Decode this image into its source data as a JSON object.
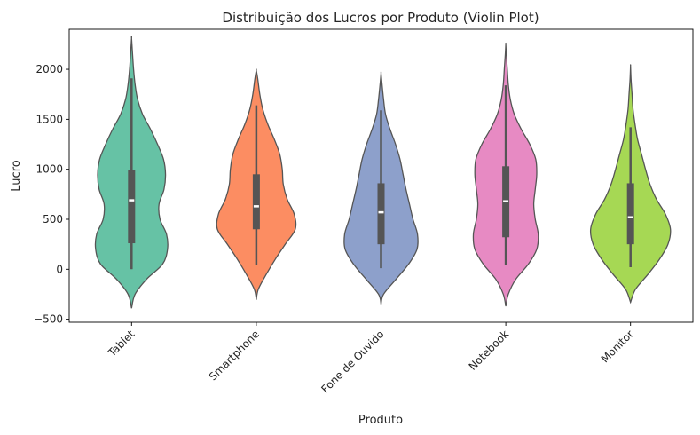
{
  "chart_data": {
    "type": "violin",
    "title": "Distribuição dos Lucros por Produto (Violin Plot)",
    "xlabel": "Produto",
    "ylabel": "Lucro",
    "ylim": [
      -530,
      2400
    ],
    "yticks": [
      -500,
      0,
      500,
      1000,
      1500,
      2000
    ],
    "categories": [
      "Tablet",
      "Smartphone",
      "Fone de Ouvido",
      "Notebook",
      "Monitor"
    ],
    "colors": [
      "#66c2a5",
      "#fc8d62",
      "#8da0cb",
      "#e78ac3",
      "#a6d854"
    ],
    "series": [
      {
        "name": "Tablet",
        "min": 0,
        "q1": 260,
        "median": 690,
        "q3": 990,
        "max": 1910,
        "violin_min": -390,
        "violin_max": 2310,
        "density": [
          [
            -390,
            0.0
          ],
          [
            -250,
            0.07
          ],
          [
            -100,
            0.3
          ],
          [
            50,
            0.62
          ],
          [
            200,
            0.72
          ],
          [
            350,
            0.7
          ],
          [
            500,
            0.57
          ],
          [
            650,
            0.55
          ],
          [
            800,
            0.65
          ],
          [
            950,
            0.68
          ],
          [
            1100,
            0.64
          ],
          [
            1250,
            0.52
          ],
          [
            1400,
            0.38
          ],
          [
            1550,
            0.22
          ],
          [
            1700,
            0.12
          ],
          [
            1850,
            0.07
          ],
          [
            2000,
            0.04
          ],
          [
            2150,
            0.02
          ],
          [
            2310,
            0.0
          ]
        ]
      },
      {
        "name": "Smartphone",
        "min": 40,
        "q1": 400,
        "median": 630,
        "q3": 950,
        "max": 1640,
        "violin_min": -305,
        "violin_max": 1990,
        "density": [
          [
            -305,
            0.0
          ],
          [
            -200,
            0.04
          ],
          [
            -50,
            0.2
          ],
          [
            100,
            0.38
          ],
          [
            250,
            0.58
          ],
          [
            400,
            0.78
          ],
          [
            550,
            0.76
          ],
          [
            700,
            0.62
          ],
          [
            850,
            0.54
          ],
          [
            1000,
            0.52
          ],
          [
            1150,
            0.47
          ],
          [
            1300,
            0.36
          ],
          [
            1450,
            0.23
          ],
          [
            1600,
            0.13
          ],
          [
            1750,
            0.07
          ],
          [
            1900,
            0.03
          ],
          [
            1990,
            0.0
          ]
        ]
      },
      {
        "name": "Fone de Ouvido",
        "min": 10,
        "q1": 250,
        "median": 570,
        "q3": 860,
        "max": 1590,
        "violin_min": -350,
        "violin_max": 1960,
        "density": [
          [
            -350,
            0.0
          ],
          [
            -250,
            0.05
          ],
          [
            -100,
            0.3
          ],
          [
            50,
            0.55
          ],
          [
            200,
            0.72
          ],
          [
            350,
            0.73
          ],
          [
            500,
            0.64
          ],
          [
            650,
            0.57
          ],
          [
            800,
            0.5
          ],
          [
            950,
            0.44
          ],
          [
            1100,
            0.38
          ],
          [
            1250,
            0.29
          ],
          [
            1400,
            0.18
          ],
          [
            1550,
            0.09
          ],
          [
            1700,
            0.05
          ],
          [
            1850,
            0.02
          ],
          [
            1960,
            0.0
          ]
        ]
      },
      {
        "name": "Notebook",
        "min": 40,
        "q1": 320,
        "median": 680,
        "q3": 1030,
        "max": 1840,
        "violin_min": -370,
        "violin_max": 2250,
        "density": [
          [
            -370,
            0.0
          ],
          [
            -250,
            0.05
          ],
          [
            -100,
            0.2
          ],
          [
            50,
            0.45
          ],
          [
            200,
            0.62
          ],
          [
            350,
            0.65
          ],
          [
            500,
            0.59
          ],
          [
            650,
            0.56
          ],
          [
            800,
            0.59
          ],
          [
            950,
            0.62
          ],
          [
            1100,
            0.6
          ],
          [
            1250,
            0.48
          ],
          [
            1400,
            0.31
          ],
          [
            1550,
            0.17
          ],
          [
            1700,
            0.09
          ],
          [
            1850,
            0.05
          ],
          [
            2000,
            0.03
          ],
          [
            2150,
            0.01
          ],
          [
            2250,
            0.0
          ]
        ]
      },
      {
        "name": "Monitor",
        "min": 20,
        "q1": 250,
        "median": 520,
        "q3": 860,
        "max": 1420,
        "violin_min": -330,
        "violin_max": 2030,
        "density": [
          [
            -330,
            0.0
          ],
          [
            -200,
            0.1
          ],
          [
            -50,
            0.35
          ],
          [
            100,
            0.58
          ],
          [
            250,
            0.75
          ],
          [
            400,
            0.8
          ],
          [
            550,
            0.7
          ],
          [
            700,
            0.52
          ],
          [
            850,
            0.39
          ],
          [
            1000,
            0.3
          ],
          [
            1150,
            0.22
          ],
          [
            1300,
            0.14
          ],
          [
            1450,
            0.09
          ],
          [
            1600,
            0.05
          ],
          [
            1750,
            0.03
          ],
          [
            1900,
            0.01
          ],
          [
            2030,
            0.0
          ]
        ]
      }
    ],
    "grid": false,
    "legend": "none"
  }
}
